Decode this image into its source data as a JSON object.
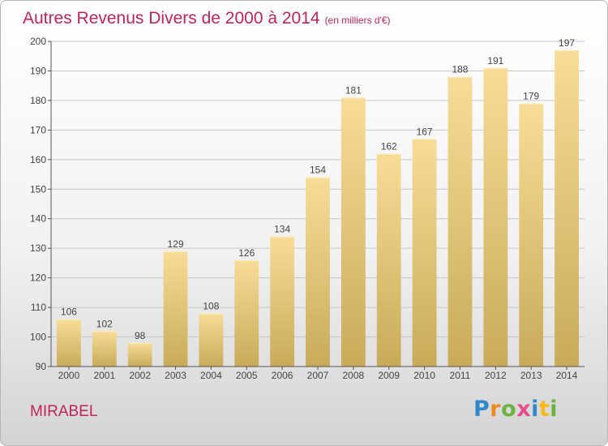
{
  "title": "Autres Revenus Divers de 2000 à 2014",
  "unit_note": "(en milliers d'€)",
  "commune": "MIRABEL",
  "logo": {
    "letters": [
      "P",
      "r",
      "o",
      "x",
      "i",
      "t",
      "i"
    ],
    "colors": [
      "#2f88c8",
      "#f08a1c",
      "#6cb33e",
      "#e84c8a",
      "#2f88c8",
      "#f6b81a",
      "#6cb33e"
    ]
  },
  "colors": {
    "accent": "#c0245a",
    "bar_top": "#f7dd98",
    "bar_bottom": "#c8ab5a"
  },
  "chart_data": {
    "type": "bar",
    "title": "Autres Revenus Divers de 2000 à 2014",
    "categories": [
      "2000",
      "2001",
      "2002",
      "2003",
      "2004",
      "2005",
      "2006",
      "2007",
      "2008",
      "2009",
      "2010",
      "2011",
      "2012",
      "2013",
      "2014"
    ],
    "values": [
      106,
      102,
      98,
      129,
      108,
      126,
      134,
      154,
      181,
      162,
      167,
      188,
      191,
      179,
      197
    ],
    "ylim": [
      90,
      200
    ],
    "yticks": [
      90,
      100,
      110,
      120,
      130,
      140,
      150,
      160,
      170,
      180,
      190,
      200
    ],
    "grid": true,
    "data_labels": true
  }
}
